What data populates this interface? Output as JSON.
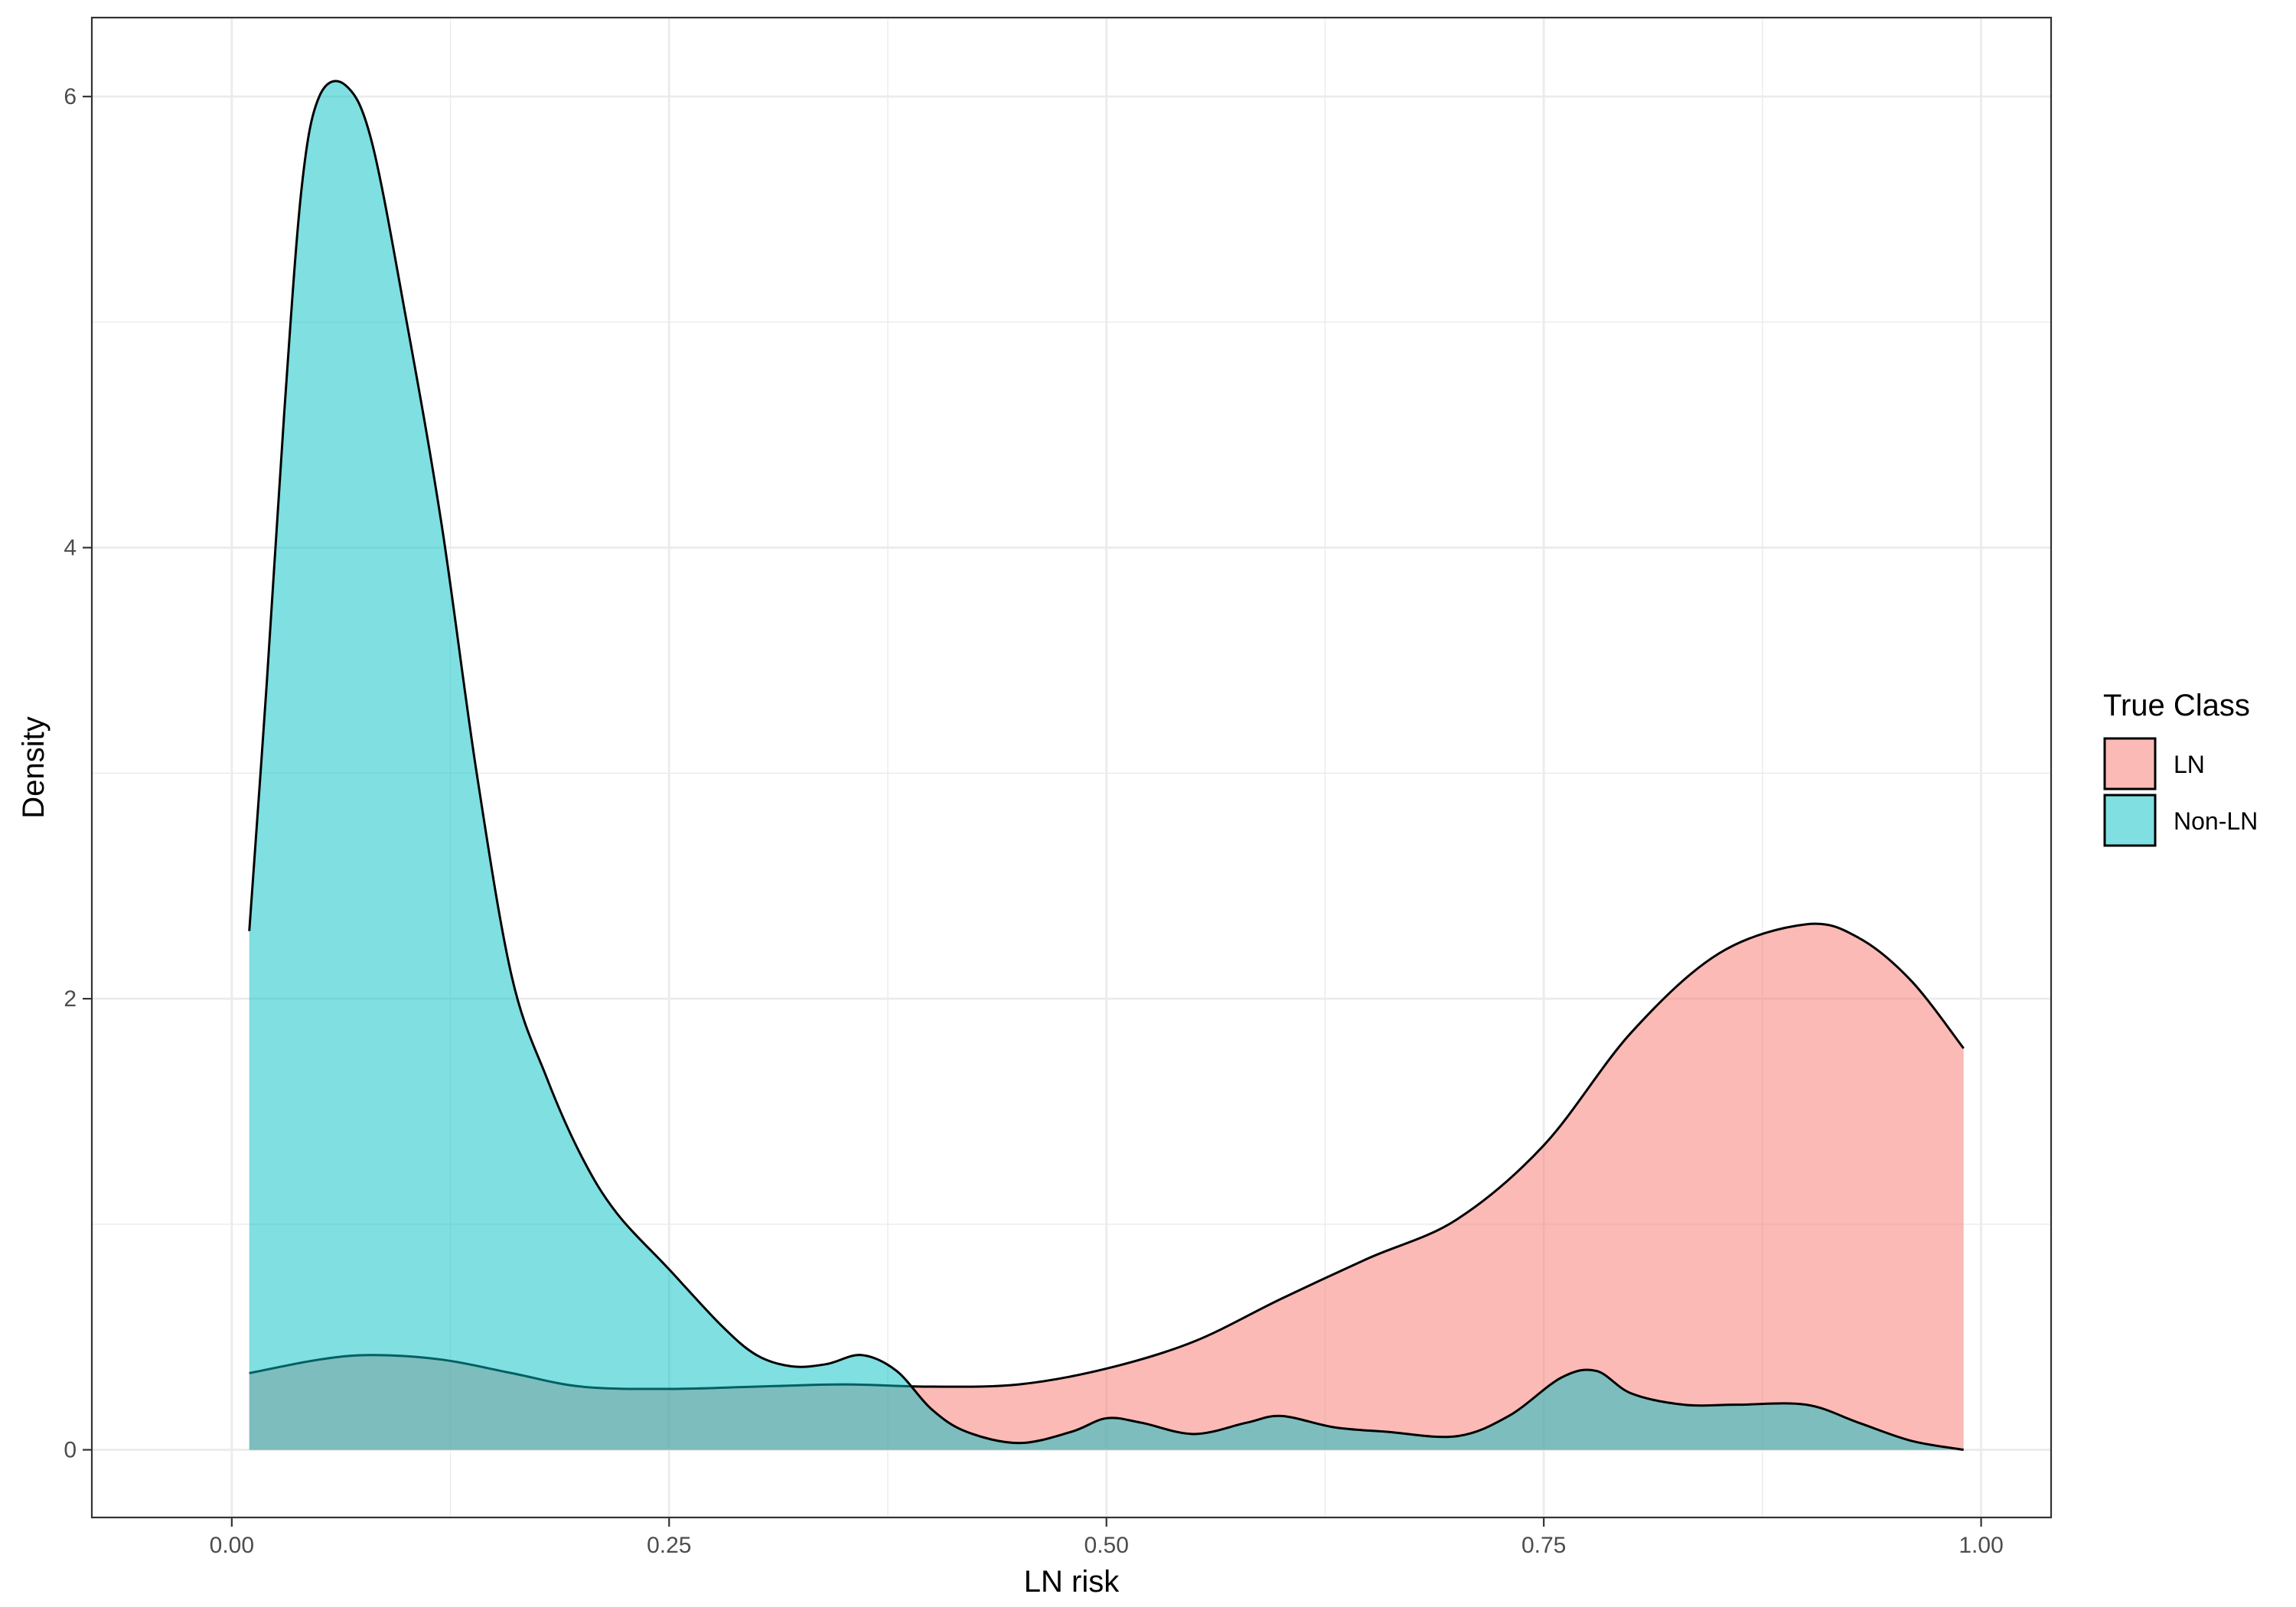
{
  "chart_data": {
    "type": "area",
    "subtype": "density",
    "title": "",
    "xlabel": "LN risk",
    "ylabel": "Density",
    "xlim": [
      -0.08,
      1.04
    ],
    "ylim": [
      -0.3,
      6.35
    ],
    "xticks": [
      0.0,
      0.25,
      0.5,
      0.75,
      1.0
    ],
    "xtick_labels": [
      "0.00",
      "0.25",
      "0.50",
      "0.75",
      "1.00"
    ],
    "yticks": [
      0,
      2,
      4,
      6
    ],
    "ytick_labels": [
      "0",
      "2",
      "4",
      "6"
    ],
    "x_minor_grid": [
      0.125,
      0.375,
      0.625,
      0.875
    ],
    "y_minor_grid": [
      1,
      3,
      5
    ],
    "grid": true,
    "legend": {
      "title": "True Class",
      "position": "right",
      "entries": [
        "LN",
        "Non-LN"
      ]
    },
    "series": [
      {
        "name": "LN",
        "color": "#F8766D",
        "x": [
          0.01,
          0.05,
          0.08,
          0.12,
          0.16,
          0.2,
          0.25,
          0.3,
          0.35,
          0.4,
          0.45,
          0.5,
          0.55,
          0.6,
          0.65,
          0.7,
          0.75,
          0.8,
          0.85,
          0.9,
          0.93,
          0.96,
          0.99
        ],
        "values": [
          0.34,
          0.4,
          0.42,
          0.4,
          0.34,
          0.28,
          0.27,
          0.28,
          0.29,
          0.28,
          0.29,
          0.36,
          0.48,
          0.67,
          0.85,
          1.02,
          1.35,
          1.85,
          2.2,
          2.33,
          2.27,
          2.08,
          1.78
        ]
      },
      {
        "name": "Non-LN",
        "color": "#00BFC4",
        "x": [
          0.01,
          0.02,
          0.03,
          0.04,
          0.05,
          0.065,
          0.08,
          0.1,
          0.12,
          0.14,
          0.16,
          0.18,
          0.2,
          0.22,
          0.25,
          0.28,
          0.3,
          0.32,
          0.34,
          0.36,
          0.38,
          0.4,
          0.42,
          0.45,
          0.48,
          0.5,
          0.52,
          0.55,
          0.58,
          0.6,
          0.63,
          0.66,
          0.7,
          0.73,
          0.76,
          0.78,
          0.8,
          0.83,
          0.86,
          0.9,
          0.93,
          0.96,
          0.99
        ],
        "values": [
          2.3,
          3.4,
          4.6,
          5.6,
          6.0,
          6.05,
          5.8,
          5.0,
          4.1,
          3.0,
          2.1,
          1.65,
          1.3,
          1.05,
          0.8,
          0.55,
          0.42,
          0.37,
          0.38,
          0.42,
          0.35,
          0.18,
          0.08,
          0.03,
          0.08,
          0.14,
          0.12,
          0.07,
          0.12,
          0.15,
          0.1,
          0.08,
          0.06,
          0.15,
          0.32,
          0.35,
          0.25,
          0.2,
          0.2,
          0.2,
          0.12,
          0.04,
          0.0
        ]
      }
    ]
  }
}
